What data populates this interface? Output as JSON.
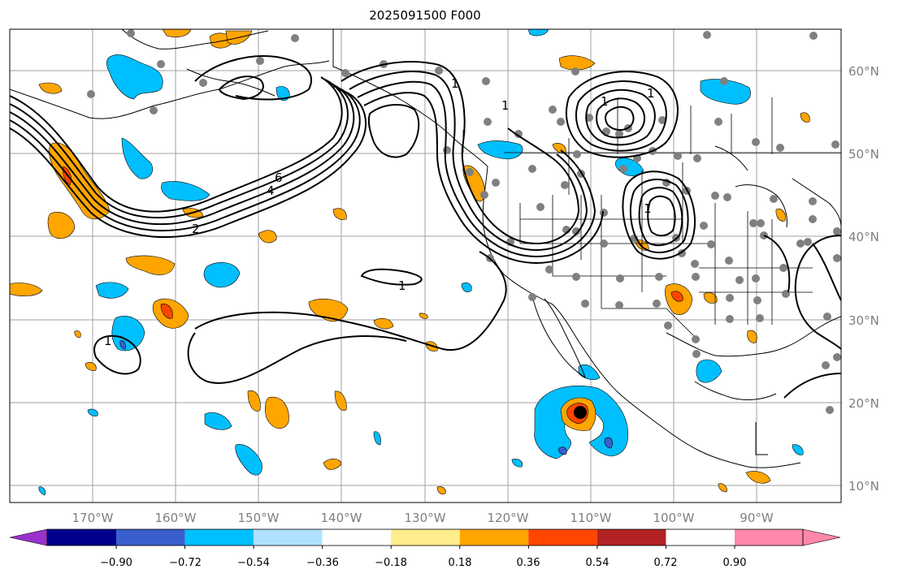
{
  "title": "2025091500 F000",
  "lon_ticks": [
    "170°W",
    "160°W",
    "150°W",
    "140°W",
    "130°W",
    "120°W",
    "110°W",
    "100°W",
    "90°W"
  ],
  "lat_ticks": [
    "60°N",
    "50°N",
    "40°N",
    "30°N",
    "20°N",
    "10°N"
  ],
  "colorbar": {
    "labels": [
      "−0.90",
      "−0.72",
      "−0.54",
      "−0.36",
      "−0.18",
      "0.18",
      "0.36",
      "0.54",
      "0.72",
      "0.90"
    ],
    "colors": [
      "#9932cc",
      "#00008b",
      "#3a5fcd",
      "#00bfff",
      "#b0e2ff",
      "#ffffff",
      "#ffec8b",
      "#ffa500",
      "#ff4500",
      "#b22222",
      "#ff88aa"
    ]
  },
  "contour_labels": [
    "1",
    "2",
    "4",
    "6",
    "1",
    "1",
    "1",
    "1",
    "1",
    "1"
  ],
  "storm_marker": "black dot"
}
